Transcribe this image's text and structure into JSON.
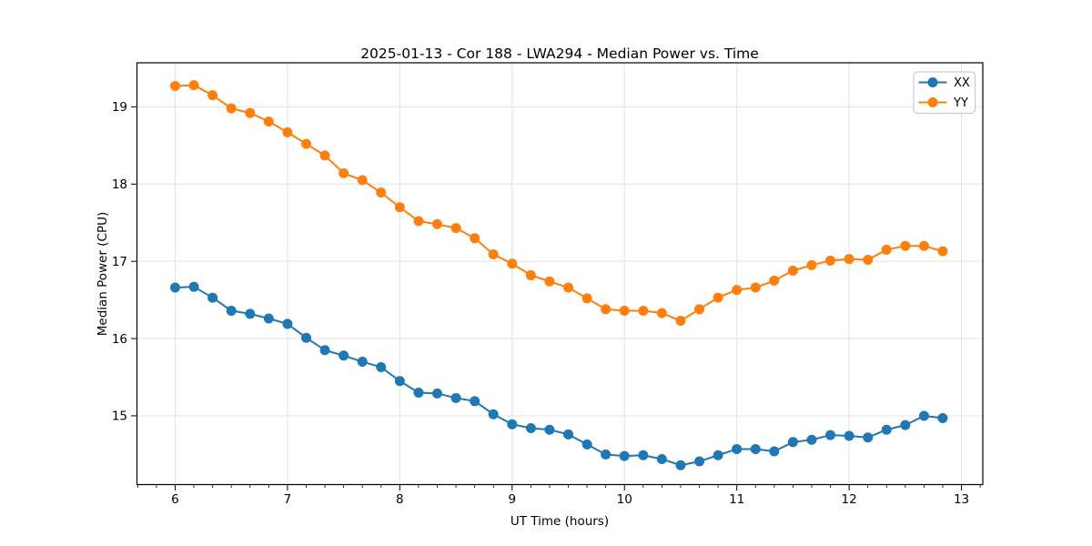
{
  "figure": {
    "background": "#ffffff"
  },
  "chart_data": {
    "type": "line",
    "title": "2025-01-13 - Cor 188 - LWA294 - Median Power vs. Time",
    "xlabel": "UT Time (hours)",
    "ylabel": "Median Power (CPU)",
    "xlim": [
      5.66,
      13.19
    ],
    "ylim": [
      14.11,
      19.57
    ],
    "xticks": [
      6,
      7,
      8,
      9,
      10,
      11,
      12,
      13
    ],
    "yticks": [
      15,
      16,
      17,
      18,
      19
    ],
    "x_minor_step": 0.16667,
    "grid": true,
    "legend_position": "upper-right",
    "x": [
      6.0,
      6.167,
      6.333,
      6.5,
      6.667,
      6.833,
      7.0,
      7.167,
      7.333,
      7.5,
      7.667,
      7.833,
      8.0,
      8.167,
      8.333,
      8.5,
      8.667,
      8.833,
      9.0,
      9.167,
      9.333,
      9.5,
      9.667,
      9.833,
      10.0,
      10.167,
      10.333,
      10.5,
      10.667,
      10.833,
      11.0,
      11.167,
      11.333,
      11.5,
      11.667,
      11.833,
      12.0,
      12.167,
      12.333,
      12.5,
      12.667,
      12.833
    ],
    "series": [
      {
        "name": "XX",
        "color": "#1f77b4",
        "values": [
          16.66,
          16.67,
          16.53,
          16.36,
          16.32,
          16.26,
          16.19,
          16.01,
          15.85,
          15.78,
          15.7,
          15.63,
          15.45,
          15.3,
          15.29,
          15.23,
          15.19,
          15.02,
          14.89,
          14.84,
          14.82,
          14.76,
          14.63,
          14.5,
          14.48,
          14.49,
          14.44,
          14.36,
          14.41,
          14.49,
          14.57,
          14.57,
          14.54,
          14.66,
          14.69,
          14.75,
          14.74,
          14.72,
          14.82,
          14.88,
          15.0,
          14.97
        ]
      },
      {
        "name": "YY",
        "color": "#ff7f0e",
        "values": [
          19.27,
          19.28,
          19.15,
          18.98,
          18.92,
          18.81,
          18.67,
          18.52,
          18.37,
          18.14,
          18.05,
          17.89,
          17.7,
          17.52,
          17.48,
          17.43,
          17.3,
          17.09,
          16.97,
          16.82,
          16.74,
          16.66,
          16.52,
          16.38,
          16.36,
          16.36,
          16.33,
          16.23,
          16.38,
          16.53,
          16.63,
          16.66,
          16.75,
          16.88,
          16.95,
          17.01,
          17.03,
          17.02,
          17.15,
          17.2,
          17.2,
          17.13
        ]
      }
    ]
  },
  "style": {
    "grid_color": "#e3e3e3",
    "spine_color": "#000000",
    "tick_color": "#000000",
    "text_color": "#000000",
    "legend_border_color": "#cccccc",
    "legend_background": "#ffffff",
    "marker_radius": 5.5,
    "line_width": 2
  }
}
